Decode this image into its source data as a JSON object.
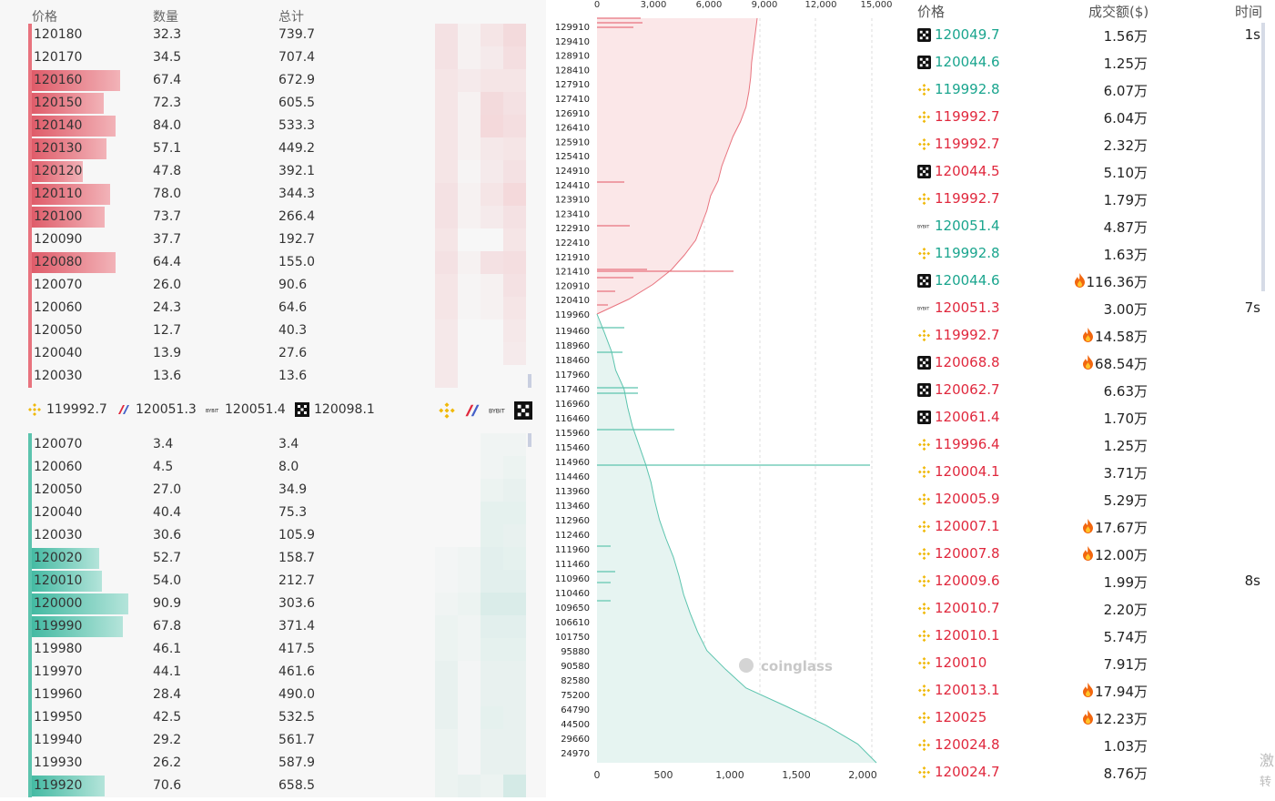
{
  "orderbook": {
    "headers": {
      "price": "价格",
      "qty": "数量",
      "total": "总计"
    },
    "asks": [
      {
        "price": "120180",
        "qty": "32.3",
        "total": "739.7",
        "bar": 0.0
      },
      {
        "price": "120170",
        "qty": "34.5",
        "total": "707.4",
        "bar": 0.0
      },
      {
        "price": "120160",
        "qty": "67.4",
        "total": "672.9",
        "bar": 0.67
      },
      {
        "price": "120150",
        "qty": "72.3",
        "total": "605.5",
        "bar": 0.55
      },
      {
        "price": "120140",
        "qty": "84.0",
        "total": "533.3",
        "bar": 0.64
      },
      {
        "price": "120130",
        "qty": "57.1",
        "total": "449.2",
        "bar": 0.57
      },
      {
        "price": "120120",
        "qty": "47.8",
        "total": "392.1",
        "bar": 0.4
      },
      {
        "price": "120110",
        "qty": "78.0",
        "total": "344.3",
        "bar": 0.6
      },
      {
        "price": "120100",
        "qty": "73.7",
        "total": "266.4",
        "bar": 0.56
      },
      {
        "price": "120090",
        "qty": "37.7",
        "total": "192.7",
        "bar": 0.0
      },
      {
        "price": "120080",
        "qty": "64.4",
        "total": "155.0",
        "bar": 0.64
      },
      {
        "price": "120070",
        "qty": "26.0",
        "total": "90.6",
        "bar": 0.0
      },
      {
        "price": "120060",
        "qty": "24.3",
        "total": "64.6",
        "bar": 0.0
      },
      {
        "price": "120050",
        "qty": "12.7",
        "total": "40.3",
        "bar": 0.0
      },
      {
        "price": "120040",
        "qty": "13.9",
        "total": "27.6",
        "bar": 0.0
      },
      {
        "price": "120030",
        "qty": "13.6",
        "total": "13.6",
        "bar": 0.0
      }
    ],
    "mid": [
      {
        "exchange": "binance",
        "price": "119992.7"
      },
      {
        "exchange": "bitmex",
        "price": "120051.3"
      },
      {
        "exchange": "bybit",
        "price": "120051.4"
      },
      {
        "exchange": "okx",
        "price": "120098.1"
      }
    ],
    "bids": [
      {
        "price": "120070",
        "qty": "3.4",
        "total": "3.4",
        "bar": 0.0
      },
      {
        "price": "120060",
        "qty": "4.5",
        "total": "8.0",
        "bar": 0.0
      },
      {
        "price": "120050",
        "qty": "27.0",
        "total": "34.9",
        "bar": 0.0
      },
      {
        "price": "120040",
        "qty": "40.4",
        "total": "75.3",
        "bar": 0.0
      },
      {
        "price": "120030",
        "qty": "30.6",
        "total": "105.9",
        "bar": 0.0
      },
      {
        "price": "120020",
        "qty": "52.7",
        "total": "158.7",
        "bar": 0.52
      },
      {
        "price": "120010",
        "qty": "54.0",
        "total": "212.7",
        "bar": 0.54
      },
      {
        "price": "120000",
        "qty": "90.9",
        "total": "303.6",
        "bar": 0.73
      },
      {
        "price": "119990",
        "qty": "67.8",
        "total": "371.4",
        "bar": 0.69
      },
      {
        "price": "119980",
        "qty": "46.1",
        "total": "417.5",
        "bar": 0.0
      },
      {
        "price": "119970",
        "qty": "44.1",
        "total": "461.6",
        "bar": 0.0
      },
      {
        "price": "119960",
        "qty": "28.4",
        "total": "490.0",
        "bar": 0.0
      },
      {
        "price": "119950",
        "qty": "42.5",
        "total": "532.5",
        "bar": 0.0
      },
      {
        "price": "119940",
        "qty": "29.2",
        "total": "561.7",
        "bar": 0.0
      },
      {
        "price": "119930",
        "qty": "26.2",
        "total": "587.9",
        "bar": 0.0
      },
      {
        "price": "119920",
        "qty": "70.6",
        "total": "658.5",
        "bar": 0.56
      }
    ]
  },
  "chart_data": {
    "type": "area",
    "top_axis_ticks": [
      "0",
      "3,000",
      "6,000",
      "9,000",
      "12,000",
      "15,000"
    ],
    "top_axis_range": [
      0,
      15000
    ],
    "bottom_axis_ticks": [
      "0",
      "500",
      "1,000",
      "1,500",
      "2,000"
    ],
    "bottom_axis_range": [
      0,
      2000
    ],
    "ask_price_labels": [
      "129910",
      "129410",
      "128910",
      "128410",
      "127910",
      "127410",
      "126910",
      "126410",
      "125910",
      "125410",
      "124910",
      "124410",
      "123910",
      "123410",
      "122910",
      "122410",
      "121910",
      "121410",
      "120910",
      "120410",
      "119960"
    ],
    "bid_price_labels": [
      "119460",
      "118960",
      "118460",
      "117960",
      "117460",
      "116960",
      "116460",
      "115960",
      "115460",
      "114960",
      "114460",
      "113960",
      "113460",
      "112960",
      "112460",
      "111960",
      "111460",
      "110960",
      "110460",
      "109650",
      "106610",
      "101750",
      "95880",
      "90580",
      "82580",
      "75200",
      "64790",
      "44500",
      "29660",
      "24970"
    ],
    "ask_cumulative": [
      8600,
      8500,
      8400,
      8300,
      8250,
      8150,
      8000,
      7700,
      7300,
      7000,
      6700,
      6500,
      6100,
      5900,
      5600,
      5300,
      4700,
      4000,
      3000,
      1700,
      0
    ],
    "bid_cumulative": [
      0,
      400,
      780,
      1000,
      1450,
      1650,
      1900,
      2250,
      2600,
      2900,
      3100,
      3350,
      3700,
      4100,
      4400,
      4650,
      5000,
      5400,
      5900,
      6900,
      8000,
      10200,
      12300,
      14000,
      15000
    ],
    "watermark": "coinglass"
  },
  "trades": {
    "headers": {
      "price": "价格",
      "amount": "成交额($)",
      "time": "时间"
    },
    "rows": [
      {
        "ex": "okx",
        "price": "120049.7",
        "side": "buy",
        "amount": "1.56万",
        "hot": false,
        "time": "1s"
      },
      {
        "ex": "okx",
        "price": "120044.6",
        "side": "buy",
        "amount": "1.25万",
        "hot": false,
        "time": ""
      },
      {
        "ex": "binance",
        "price": "119992.8",
        "side": "buy",
        "amount": "6.07万",
        "hot": false,
        "time": ""
      },
      {
        "ex": "binance",
        "price": "119992.7",
        "side": "sell",
        "amount": "6.04万",
        "hot": false,
        "time": ""
      },
      {
        "ex": "binance",
        "price": "119992.7",
        "side": "sell",
        "amount": "2.32万",
        "hot": false,
        "time": ""
      },
      {
        "ex": "okx",
        "price": "120044.5",
        "side": "sell",
        "amount": "5.10万",
        "hot": false,
        "time": ""
      },
      {
        "ex": "binance",
        "price": "119992.7",
        "side": "sell",
        "amount": "1.79万",
        "hot": false,
        "time": ""
      },
      {
        "ex": "bybit",
        "price": "120051.4",
        "side": "buy",
        "amount": "4.87万",
        "hot": false,
        "time": ""
      },
      {
        "ex": "binance",
        "price": "119992.8",
        "side": "buy",
        "amount": "1.63万",
        "hot": false,
        "time": ""
      },
      {
        "ex": "okx",
        "price": "120044.6",
        "side": "buy",
        "amount": "116.36万",
        "hot": true,
        "time": ""
      },
      {
        "ex": "bybit",
        "price": "120051.3",
        "side": "sell",
        "amount": "3.00万",
        "hot": false,
        "time": "7s"
      },
      {
        "ex": "binance",
        "price": "119992.7",
        "side": "sell",
        "amount": "14.58万",
        "hot": true,
        "time": ""
      },
      {
        "ex": "okx",
        "price": "120068.8",
        "side": "sell",
        "amount": "68.54万",
        "hot": true,
        "time": ""
      },
      {
        "ex": "okx",
        "price": "120062.7",
        "side": "sell",
        "amount": "6.63万",
        "hot": false,
        "time": ""
      },
      {
        "ex": "okx",
        "price": "120061.4",
        "side": "sell",
        "amount": "1.70万",
        "hot": false,
        "time": ""
      },
      {
        "ex": "binance",
        "price": "119996.4",
        "side": "sell",
        "amount": "1.25万",
        "hot": false,
        "time": ""
      },
      {
        "ex": "binance",
        "price": "120004.1",
        "side": "sell",
        "amount": "3.71万",
        "hot": false,
        "time": ""
      },
      {
        "ex": "binance",
        "price": "120005.9",
        "side": "sell",
        "amount": "5.29万",
        "hot": false,
        "time": ""
      },
      {
        "ex": "binance",
        "price": "120007.1",
        "side": "sell",
        "amount": "17.67万",
        "hot": true,
        "time": ""
      },
      {
        "ex": "binance",
        "price": "120007.8",
        "side": "sell",
        "amount": "12.00万",
        "hot": true,
        "time": ""
      },
      {
        "ex": "binance",
        "price": "120009.6",
        "side": "sell",
        "amount": "1.99万",
        "hot": false,
        "time": "8s"
      },
      {
        "ex": "binance",
        "price": "120010.7",
        "side": "sell",
        "amount": "2.20万",
        "hot": false,
        "time": ""
      },
      {
        "ex": "binance",
        "price": "120010.1",
        "side": "sell",
        "amount": "5.74万",
        "hot": false,
        "time": ""
      },
      {
        "ex": "binance",
        "price": "120010",
        "side": "sell",
        "amount": "7.91万",
        "hot": false,
        "time": ""
      },
      {
        "ex": "binance",
        "price": "120013.1",
        "side": "sell",
        "amount": "17.94万",
        "hot": true,
        "time": ""
      },
      {
        "ex": "binance",
        "price": "120025",
        "side": "sell",
        "amount": "12.23万",
        "hot": true,
        "time": ""
      },
      {
        "ex": "binance",
        "price": "120024.8",
        "side": "sell",
        "amount": "1.03万",
        "hot": false,
        "time": ""
      },
      {
        "ex": "binance",
        "price": "120024.7",
        "side": "sell",
        "amount": "8.76万",
        "hot": false,
        "time": ""
      }
    ],
    "watermark": [
      "激",
      "转"
    ]
  },
  "colors": {
    "ask": "#e8737e",
    "bid": "#5cc4ae",
    "askFill": "#fbe7e8",
    "bidFill": "#e6f4f1",
    "green": "#1aa58e",
    "red": "#e0283d"
  }
}
